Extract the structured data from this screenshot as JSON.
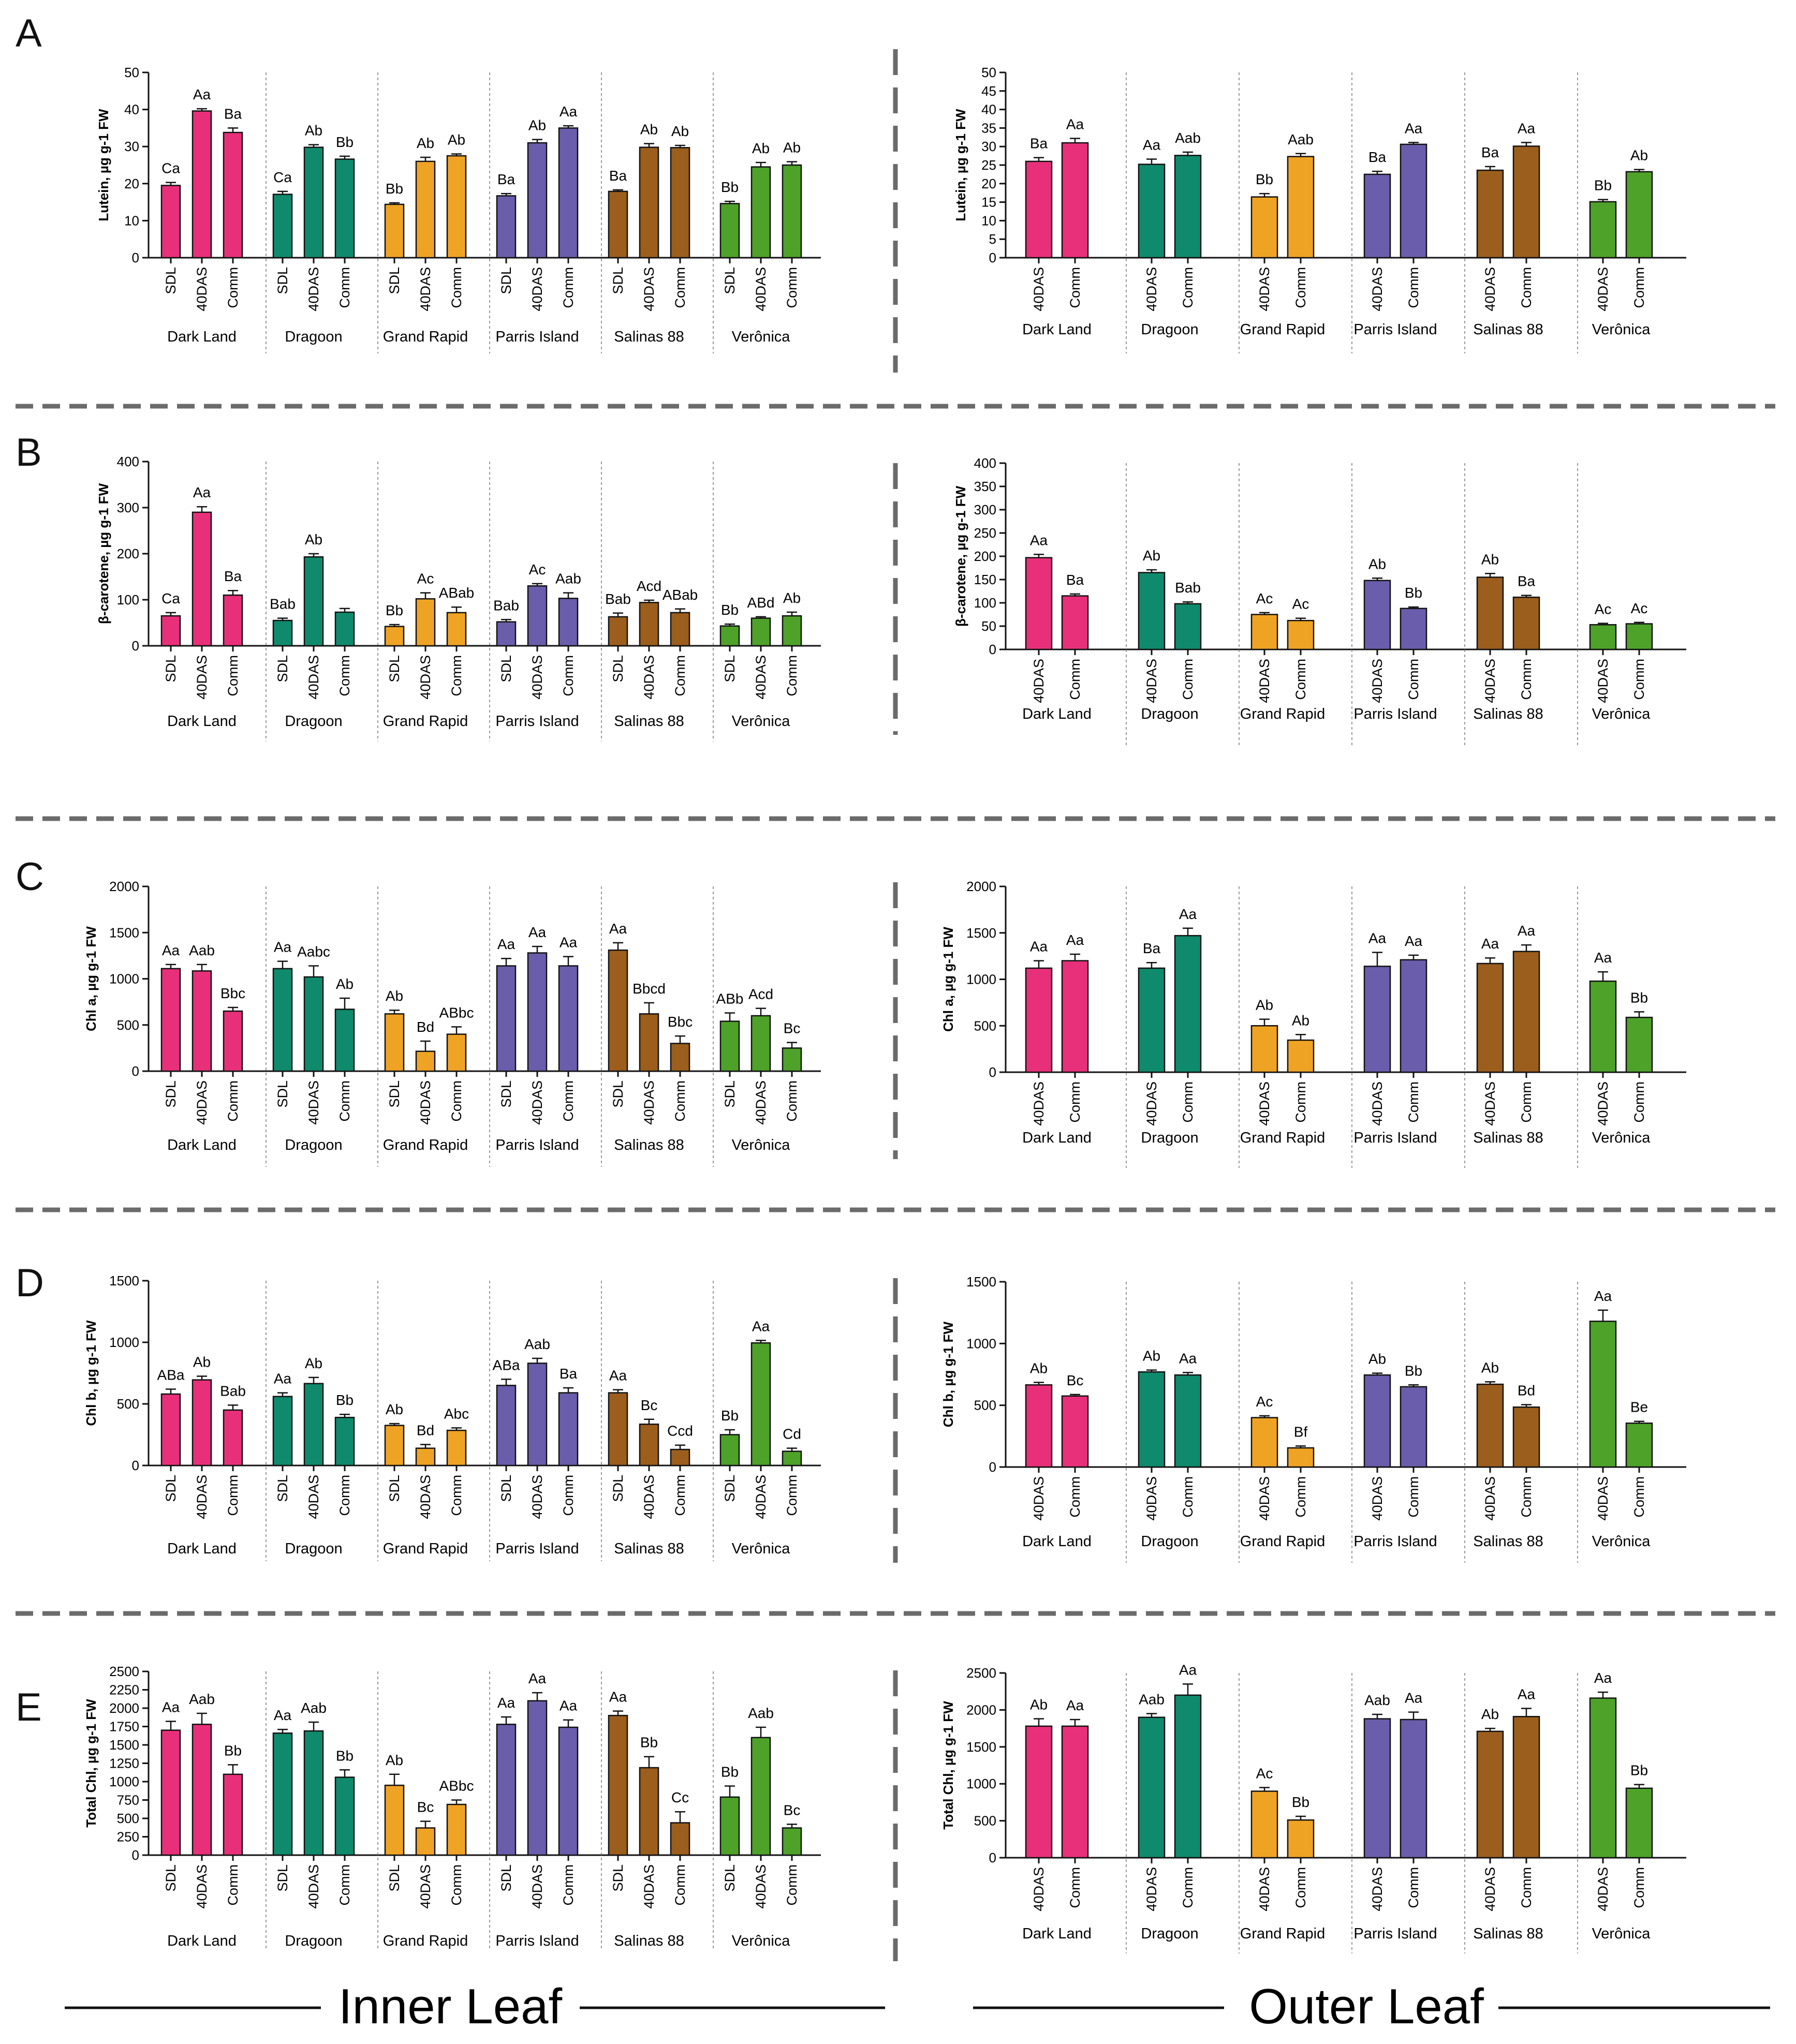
{
  "figure": {
    "footer": {
      "inner_label": "Inner Leaf",
      "outer_label": "Outer Leaf"
    }
  },
  "chart_data": [
    {
      "id": "A-inner",
      "panel": "A",
      "side": "inner",
      "type": "bar",
      "ylabel": "Lutein, µg g-1 FW",
      "ylim": [
        0,
        50
      ],
      "yticks": [
        0,
        10,
        20,
        30,
        40,
        50
      ],
      "groups": [
        "Dark Land",
        "Dragoon",
        "Grand Rapid",
        "Parris Island",
        "Salinas 88",
        "Verônica"
      ],
      "categories": [
        "SDL",
        "40DAS",
        "Comm"
      ],
      "values": [
        [
          19.5,
          39.6,
          33.8
        ],
        [
          17.1,
          29.8,
          26.6
        ],
        [
          14.4,
          26.0,
          27.5
        ],
        [
          16.7,
          31.0,
          35.0
        ],
        [
          17.9,
          29.8,
          29.7
        ],
        [
          14.6,
          24.5,
          25.0
        ]
      ],
      "errors": [
        [
          0.8,
          0.6,
          1.2
        ],
        [
          0.8,
          0.7,
          0.8
        ],
        [
          0.4,
          1.1,
          0.5
        ],
        [
          0.6,
          0.9,
          0.6
        ],
        [
          0.4,
          1.0,
          0.6
        ],
        [
          0.6,
          1.2,
          0.9
        ]
      ],
      "labels": [
        [
          "Ca",
          "Aa",
          "Ba"
        ],
        [
          "Ca",
          "Ab",
          "Bb"
        ],
        [
          "Bb",
          "Ab",
          "Ab"
        ],
        [
          "Ba",
          "Ab",
          "Aa"
        ],
        [
          "Ba",
          "Ab",
          "Ab"
        ],
        [
          "Bb",
          "Ab",
          "Ab"
        ]
      ]
    },
    {
      "id": "A-outer",
      "panel": "A",
      "side": "outer",
      "type": "bar",
      "ylabel": "Lutein, µg g-1 FW",
      "ylim": [
        0,
        50
      ],
      "yticks": [
        0,
        5,
        10,
        15,
        20,
        25,
        30,
        35,
        40,
        45,
        50
      ],
      "groups": [
        "Dark Land",
        "Dragoon",
        "Grand Rapid",
        "Parris Island",
        "Salinas 88",
        "Verônica"
      ],
      "categories": [
        "40DAS",
        "Comm"
      ],
      "values": [
        [
          26.0,
          31.0
        ],
        [
          25.2,
          27.6
        ],
        [
          16.4,
          27.3
        ],
        [
          22.5,
          30.6
        ],
        [
          23.6,
          30.1
        ],
        [
          15.1,
          23.2
        ]
      ],
      "errors": [
        [
          1.0,
          1.2
        ],
        [
          1.4,
          0.9
        ],
        [
          0.9,
          0.8
        ],
        [
          0.8,
          0.5
        ],
        [
          1.0,
          1.0
        ],
        [
          0.6,
          0.6
        ]
      ],
      "labels": [
        [
          "Ba",
          "Aa"
        ],
        [
          "Aa",
          "Aab"
        ],
        [
          "Bb",
          "Aab"
        ],
        [
          "Ba",
          "Aa"
        ],
        [
          "Ba",
          "Aa"
        ],
        [
          "Bb",
          "Ab"
        ]
      ]
    },
    {
      "id": "B-inner",
      "panel": "B",
      "side": "inner",
      "type": "bar",
      "ylabel": "β-carotene, µg g-1 FW",
      "ylim": [
        0,
        400
      ],
      "yticks": [
        0,
        100,
        200,
        300,
        400
      ],
      "groups": [
        "Dark Land",
        "Dragoon",
        "Grand Rapid",
        "Parris Island",
        "Salinas 88",
        "Verônica"
      ],
      "categories": [
        "SDL",
        "40DAS",
        "Comm"
      ],
      "values": [
        [
          65,
          290,
          110
        ],
        [
          55,
          193,
          73
        ],
        [
          42,
          102,
          72
        ],
        [
          52,
          130,
          103
        ],
        [
          63,
          94,
          72
        ],
        [
          43,
          60,
          65
        ]
      ],
      "errors": [
        [
          7,
          12,
          10
        ],
        [
          5,
          7,
          8
        ],
        [
          4,
          13,
          12
        ],
        [
          5,
          5,
          12
        ],
        [
          8,
          5,
          8
        ],
        [
          4,
          3,
          8
        ]
      ],
      "labels": [
        [
          "Ca",
          "Aa",
          "Ba"
        ],
        [
          "Bab",
          "Ab",
          ""
        ],
        [
          "Bb",
          "Ac",
          "ABab"
        ],
        [
          "Bab",
          "Ac",
          "Aab"
        ],
        [
          "Bab",
          "Acd",
          "ABab"
        ],
        [
          "Bb",
          "ABd",
          "Ab"
        ]
      ]
    },
    {
      "id": "B-outer",
      "panel": "B",
      "side": "outer",
      "type": "bar",
      "ylabel": "β-carotene, µg g-1 FW",
      "ylim": [
        0,
        400
      ],
      "yticks": [
        0,
        50,
        100,
        150,
        200,
        250,
        300,
        350,
        400
      ],
      "groups": [
        "Dark Land",
        "Dragoon",
        "Grand Rapid",
        "Parris Island",
        "Salinas 88",
        "Verônica"
      ],
      "categories": [
        "40DAS",
        "Comm"
      ],
      "values": [
        [
          197,
          115
        ],
        [
          165,
          98
        ],
        [
          75,
          62
        ],
        [
          148,
          88
        ],
        [
          155,
          112
        ],
        [
          53,
          55
        ]
      ],
      "errors": [
        [
          7,
          4
        ],
        [
          6,
          4
        ],
        [
          4,
          5
        ],
        [
          5,
          3
        ],
        [
          8,
          4
        ],
        [
          3,
          3
        ]
      ],
      "labels": [
        [
          "Aa",
          "Ba"
        ],
        [
          "Ab",
          "Bab"
        ],
        [
          "Ac",
          "Ac"
        ],
        [
          "Ab",
          "Bb"
        ],
        [
          "Ab",
          "Ba"
        ],
        [
          "Ac",
          "Ac"
        ]
      ]
    },
    {
      "id": "C-inner",
      "panel": "C",
      "side": "inner",
      "type": "bar",
      "ylabel": "Chl a, µg g-1 FW",
      "ylim": [
        0,
        2000
      ],
      "yticks": [
        0,
        500,
        1000,
        1500,
        2000
      ],
      "groups": [
        "Dark Land",
        "Dragoon",
        "Grand Rapid",
        "Parris Island",
        "Salinas 88",
        "Verônica"
      ],
      "categories": [
        "SDL",
        "40DAS",
        "Comm"
      ],
      "values": [
        [
          1110,
          1085,
          650
        ],
        [
          1110,
          1020,
          670
        ],
        [
          620,
          215,
          400
        ],
        [
          1140,
          1280,
          1140
        ],
        [
          1310,
          620,
          300
        ],
        [
          540,
          600,
          250
        ]
      ],
      "errors": [
        [
          45,
          70,
          40
        ],
        [
          80,
          120,
          120
        ],
        [
          40,
          110,
          80
        ],
        [
          80,
          70,
          100
        ],
        [
          80,
          120,
          80
        ],
        [
          90,
          80,
          60
        ]
      ],
      "labels": [
        [
          "Aa",
          "Aab",
          "Bbc"
        ],
        [
          "Aa",
          "Aabc",
          "Ab"
        ],
        [
          "Ab",
          "Bd",
          "ABbc"
        ],
        [
          "Aa",
          "Aa",
          "Aa"
        ],
        [
          "Aa",
          "Bbcd",
          "Bbc"
        ],
        [
          "ABb",
          "Acd",
          "Bc"
        ]
      ]
    },
    {
      "id": "C-outer",
      "panel": "C",
      "side": "outer",
      "type": "bar",
      "ylabel": "Chl a, µg g-1 FW",
      "ylim": [
        0,
        2000
      ],
      "yticks": [
        0,
        500,
        1000,
        1500,
        2000
      ],
      "groups": [
        "Dark Land",
        "Dragoon",
        "Grand Rapid",
        "Parris Island",
        "Salinas 88",
        "Verônica"
      ],
      "categories": [
        "40DAS",
        "Comm"
      ],
      "values": [
        [
          1120,
          1200
        ],
        [
          1120,
          1470
        ],
        [
          500,
          345
        ],
        [
          1140,
          1210
        ],
        [
          1170,
          1300
        ],
        [
          980,
          590
        ]
      ],
      "errors": [
        [
          80,
          70
        ],
        [
          60,
          80
        ],
        [
          70,
          60
        ],
        [
          150,
          50
        ],
        [
          60,
          70
        ],
        [
          100,
          60
        ]
      ],
      "labels": [
        [
          "Aa",
          "Aa"
        ],
        [
          "Ba",
          "Aa"
        ],
        [
          "Ab",
          "Ab"
        ],
        [
          "Aa",
          "Aa"
        ],
        [
          "Aa",
          "Aa"
        ],
        [
          "Aa",
          "Bb"
        ]
      ]
    },
    {
      "id": "D-inner",
      "panel": "D",
      "side": "inner",
      "type": "bar",
      "ylabel": "Chl b, µg g-1 FW",
      "ylim": [
        0,
        1500
      ],
      "yticks": [
        0,
        500,
        1000,
        1500
      ],
      "groups": [
        "Dark Land",
        "Dragoon",
        "Grand Rapid",
        "Parris Island",
        "Salinas 88",
        "Verônica"
      ],
      "categories": [
        "SDL",
        "40DAS",
        "Comm"
      ],
      "values": [
        [
          580,
          695,
          450
        ],
        [
          560,
          665,
          390
        ],
        [
          325,
          140,
          285
        ],
        [
          650,
          830,
          590
        ],
        [
          590,
          335,
          130
        ],
        [
          250,
          995,
          115
        ]
      ],
      "errors": [
        [
          40,
          30,
          40
        ],
        [
          30,
          50,
          25
        ],
        [
          15,
          30,
          20
        ],
        [
          50,
          40,
          40
        ],
        [
          25,
          40,
          35
        ],
        [
          40,
          20,
          25
        ]
      ],
      "labels": [
        [
          "ABa",
          "Ab",
          "Bab"
        ],
        [
          "Aa",
          "Ab",
          "Bb"
        ],
        [
          "Ab",
          "Bd",
          "Abc"
        ],
        [
          "ABa",
          "Aab",
          "Ba"
        ],
        [
          "Aa",
          "Bc",
          "Ccd"
        ],
        [
          "Bb",
          "Aa",
          "Cd"
        ]
      ]
    },
    {
      "id": "D-outer",
      "panel": "D",
      "side": "outer",
      "type": "bar",
      "ylabel": "Chl b, µg g-1 FW",
      "ylim": [
        0,
        1500
      ],
      "yticks": [
        0,
        500,
        1000,
        1500
      ],
      "groups": [
        "Dark Land",
        "Dragoon",
        "Grand Rapid",
        "Parris Island",
        "Salinas 88",
        "Verônica"
      ],
      "categories": [
        "40DAS",
        "Comm"
      ],
      "values": [
        [
          665,
          575
        ],
        [
          770,
          745
        ],
        [
          400,
          155
        ],
        [
          745,
          650
        ],
        [
          670,
          485
        ],
        [
          1180,
          355
        ]
      ],
      "errors": [
        [
          20,
          12
        ],
        [
          15,
          20
        ],
        [
          15,
          15
        ],
        [
          15,
          15
        ],
        [
          20,
          20
        ],
        [
          90,
          15
        ]
      ],
      "labels": [
        [
          "Ab",
          "Bc"
        ],
        [
          "Ab",
          "Aa"
        ],
        [
          "Ac",
          "Bf"
        ],
        [
          "Ab",
          "Bb"
        ],
        [
          "Ab",
          "Bd"
        ],
        [
          "Aa",
          "Be"
        ]
      ]
    },
    {
      "id": "E-inner",
      "panel": "E",
      "side": "inner",
      "type": "bar",
      "ylabel": "Total Chl, µg g-1 FW",
      "ylim": [
        0,
        2500
      ],
      "yticks": [
        0,
        250,
        500,
        750,
        1000,
        1250,
        1500,
        1750,
        2000,
        2250,
        2500
      ],
      "groups": [
        "Dark Land",
        "Dragoon",
        "Grand Rapid",
        "Parris Island",
        "Salinas 88",
        "Verônica"
      ],
      "categories": [
        "SDL",
        "40DAS",
        "Comm"
      ],
      "values": [
        [
          1700,
          1780,
          1100
        ],
        [
          1660,
          1690,
          1060
        ],
        [
          950,
          370,
          690
        ],
        [
          1780,
          2100,
          1740
        ],
        [
          1900,
          1190,
          440
        ],
        [
          790,
          1600,
          370
        ]
      ],
      "errors": [
        [
          120,
          150,
          130
        ],
        [
          50,
          120,
          100
        ],
        [
          150,
          90,
          60
        ],
        [
          100,
          110,
          100
        ],
        [
          60,
          150,
          150
        ],
        [
          150,
          140,
          50
        ]
      ],
      "labels": [
        [
          "Aa",
          "Aab",
          "Bb"
        ],
        [
          "Aa",
          "Aab",
          "Bb"
        ],
        [
          "Ab",
          "Bc",
          "ABbc"
        ],
        [
          "Aa",
          "Aa",
          "Aa"
        ],
        [
          "Aa",
          "Bb",
          "Cc"
        ],
        [
          "Bb",
          "Aab",
          "Bc"
        ]
      ]
    },
    {
      "id": "E-outer",
      "panel": "E",
      "side": "outer",
      "type": "bar",
      "ylabel": "Total Chl, µg g-1 FW",
      "ylim": [
        0,
        2500
      ],
      "yticks": [
        0,
        500,
        1000,
        1500,
        2000,
        2500
      ],
      "groups": [
        "Dark Land",
        "Dragoon",
        "Grand Rapid",
        "Parris Island",
        "Salinas 88",
        "Verônica"
      ],
      "categories": [
        "40DAS",
        "Comm"
      ],
      "values": [
        [
          1780,
          1780
        ],
        [
          1900,
          2200
        ],
        [
          900,
          510
        ],
        [
          1880,
          1870
        ],
        [
          1710,
          1910
        ],
        [
          2160,
          940
        ]
      ],
      "errors": [
        [
          100,
          90
        ],
        [
          50,
          150
        ],
        [
          50,
          50
        ],
        [
          60,
          100
        ],
        [
          40,
          110
        ],
        [
          80,
          50
        ]
      ],
      "labels": [
        [
          "Ab",
          "Aa"
        ],
        [
          "Aab",
          "Aa"
        ],
        [
          "Ac",
          "Bb"
        ],
        [
          "Aab",
          "Aa"
        ],
        [
          "Ab",
          "Aa"
        ],
        [
          "Aa",
          "Bb"
        ]
      ]
    }
  ],
  "colors": [
    "#e8307a",
    "#0f8a6c",
    "#efa325",
    "#6a5dab",
    "#9c5e1d",
    "#4ea22a"
  ]
}
